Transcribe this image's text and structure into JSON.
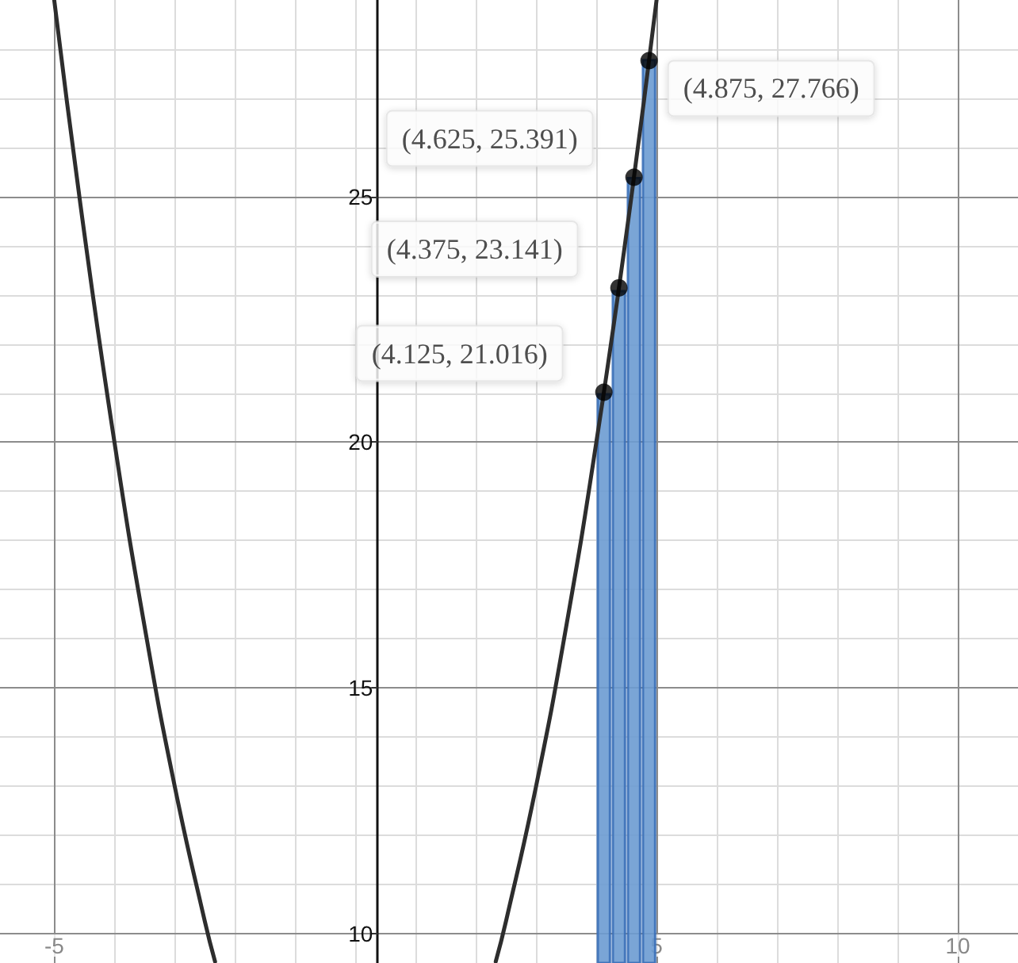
{
  "chart_data": {
    "type": "line",
    "xlim": [
      -5.9,
      11
    ],
    "ylim": [
      9.4,
      29
    ],
    "xticks": [
      -5,
      {
        "value": -4,
        "label": null
      },
      {
        "value": -3,
        "label": null
      },
      {
        "value": -2,
        "label": null
      },
      {
        "value": -1,
        "label": null
      },
      {
        "value": 0,
        "label": null
      },
      {
        "value": 1,
        "label": null
      },
      {
        "value": 2,
        "label": null
      },
      {
        "value": 3,
        "label": null
      },
      {
        "value": 4,
        "label": null
      },
      5,
      {
        "value": 6,
        "label": null
      },
      {
        "value": 7,
        "label": null
      },
      {
        "value": 8,
        "label": null
      },
      {
        "value": 9,
        "label": null
      },
      10
    ],
    "yticks": [
      10,
      {
        "value": 11,
        "label": null
      },
      {
        "value": 12,
        "label": null
      },
      {
        "value": 13,
        "label": null
      },
      {
        "value": 14,
        "label": null
      },
      15,
      {
        "value": 16,
        "label": null
      },
      {
        "value": 17,
        "label": null
      },
      {
        "value": 18,
        "label": null
      },
      {
        "value": 19,
        "label": null
      },
      20,
      {
        "value": 21,
        "label": null
      },
      {
        "value": 22,
        "label": null
      },
      {
        "value": 23,
        "label": null
      },
      {
        "value": 24,
        "label": null
      },
      25,
      {
        "value": 26,
        "label": null
      },
      {
        "value": 27,
        "label": null
      },
      {
        "value": 28,
        "label": null
      }
    ],
    "grid": true,
    "series": [
      {
        "color": "#2d2d2d",
        "line_style": "solid",
        "marker": "none",
        "x": [
          -5,
          -4.5,
          -4,
          -3.5,
          -3,
          -2.5,
          -2.33,
          null,
          2.33,
          2.5,
          3,
          3.5,
          4,
          4.5,
          5
        ],
        "values": [
          29,
          24.25,
          20,
          16.25,
          13,
          10.25,
          9.43,
          null,
          9.43,
          10.25,
          13,
          16.25,
          20,
          24.25,
          29
        ]
      },
      {
        "type": "bar",
        "color": "#6b9bd2",
        "x": [
          4.125,
          4.375,
          4.625,
          4.875
        ],
        "values": [
          21.0,
          23.1,
          25.4,
          27.8
        ]
      },
      {
        "type": "scatter",
        "color": "#000000",
        "marker": "circle",
        "x": [
          4.125,
          4.375,
          4.625,
          4.875
        ],
        "values": [
          21.016,
          23.141,
          25.391,
          27.766
        ],
        "value_labels": [
          "(4.125, 21.016)",
          "(4.375, 23.141)",
          "(4.625, 25.391)",
          "(4.875, 27.766)"
        ]
      }
    ]
  }
}
